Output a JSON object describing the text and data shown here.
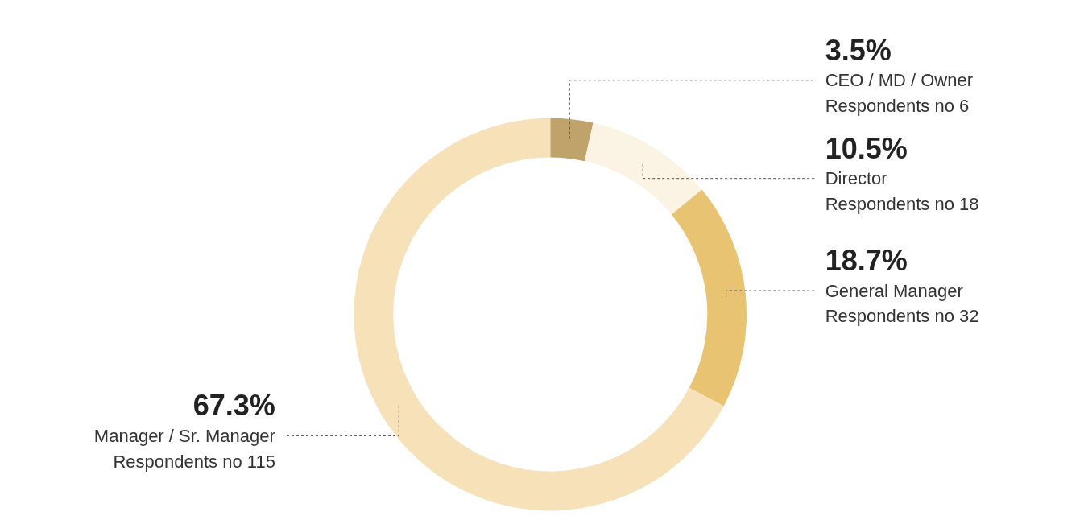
{
  "chart_data": {
    "type": "donut",
    "categories": [
      "CEO / MD / Owner",
      "Director",
      "General Manager",
      "Manager / Sr. Manager"
    ],
    "values": [
      6,
      18,
      32,
      115
    ],
    "colors": [
      "#bfa36b",
      "#fbf3e3",
      "#e8c472",
      "#f7e1b9"
    ],
    "value_labels": [
      "Respondents no 6",
      "Respondents no 18",
      "Respondents no 32",
      "Respondents no 115"
    ],
    "annotations": [
      "3.5%",
      "10.5%",
      "18.7%",
      "67.3%"
    ]
  }
}
